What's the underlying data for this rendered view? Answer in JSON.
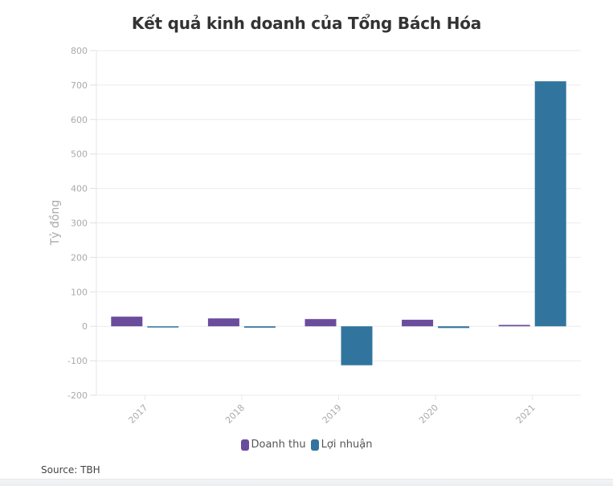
{
  "title": "Kết quả kinh doanh của Tổng Bách Hóa",
  "source": "Source: TBH",
  "legend": [
    {
      "label": "Doanh thu",
      "color": "#6a4c9c"
    },
    {
      "label": "Lợi nhuận",
      "color": "#31759e"
    }
  ],
  "chart_data": {
    "type": "bar",
    "title": "Kết quả kinh doanh của Tổng Bách Hóa",
    "xlabel": "",
    "ylabel": "Tỷ đồng",
    "categories": [
      "2017",
      "2018",
      "2019",
      "2020",
      "2021"
    ],
    "series": [
      {
        "name": "Doanh thu",
        "color": "#6a4c9c",
        "values": [
          28,
          23,
          21,
          19,
          4
        ]
      },
      {
        "name": "Lợi nhuận",
        "color": "#31759e",
        "values": [
          -2,
          -4,
          -113,
          -5,
          711
        ]
      }
    ],
    "ylim": [
      -200,
      800
    ],
    "yticks": [
      -200,
      -100,
      0,
      100,
      200,
      300,
      400,
      500,
      600,
      700,
      800
    ],
    "grid": true,
    "legend_position": "bottom",
    "x_tick_rotation": -45
  }
}
